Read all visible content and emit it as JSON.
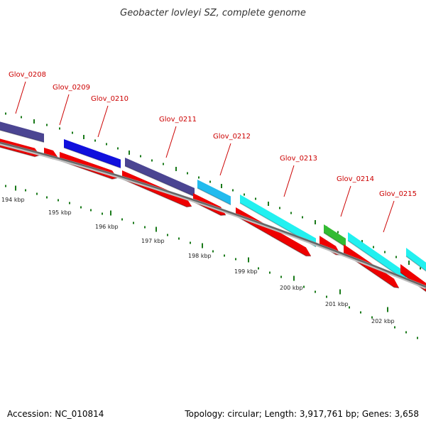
{
  "title": "Geobacter lovleyi SZ, complete genome",
  "accession": "Accession: NC_010814",
  "summary": "Topology: circular; Length: 3,917,761 bp; Genes: 3,658",
  "colors": {
    "backbone": "#6e6e6e",
    "cds": "#ee0000",
    "tick": "#1a7a1a",
    "gene_label": "#cc0000",
    "slate": "#4b4592",
    "blue": "#1010dd",
    "lightblue": "#22bbee",
    "cyan": "#22f0f0",
    "green": "#33bb33"
  },
  "genes": [
    {
      "name": "Glov_0208",
      "color": "slate"
    },
    {
      "name": "Glov_0209",
      "color": "none"
    },
    {
      "name": "Glov_0210",
      "color": "blue"
    },
    {
      "name": "Glov_0211",
      "color": "slate"
    },
    {
      "name": "Glov_0212",
      "color": "lightblue"
    },
    {
      "name": "Glov_0213",
      "color": "cyan"
    },
    {
      "name": "Glov_0214",
      "color": "green"
    },
    {
      "name": "Glov_0215",
      "color": "cyan"
    }
  ],
  "kbp_labels": [
    "194 kbp",
    "195 kbp",
    "196 kbp",
    "197 kbp",
    "198 kbp",
    "199 kbp",
    "200 kbp",
    "201 kbp",
    "202 kbp"
  ]
}
